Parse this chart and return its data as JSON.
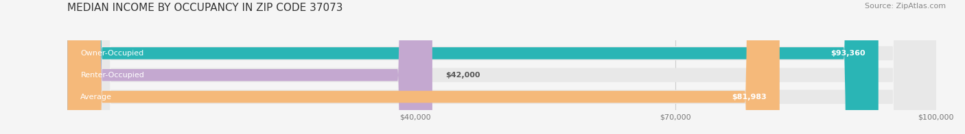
{
  "title": "MEDIAN INCOME BY OCCUPANCY IN ZIP CODE 37073",
  "source": "Source: ZipAtlas.com",
  "categories": [
    "Owner-Occupied",
    "Renter-Occupied",
    "Average"
  ],
  "values": [
    93360,
    42000,
    81983
  ],
  "value_labels": [
    "$93,360",
    "$42,000",
    "$81,983"
  ],
  "bar_colors": [
    "#2ab5b5",
    "#c4a8d0",
    "#f5b97a"
  ],
  "bar_track_color": "#e8e8e8",
  "xlim": [
    0,
    100000
  ],
  "xticks": [
    40000,
    70000,
    100000
  ],
  "xtick_labels": [
    "$40,000",
    "$70,000",
    "$100,000"
  ],
  "title_fontsize": 11,
  "source_fontsize": 8,
  "label_fontsize": 8,
  "value_fontsize": 8,
  "background_color": "#f5f5f5"
}
